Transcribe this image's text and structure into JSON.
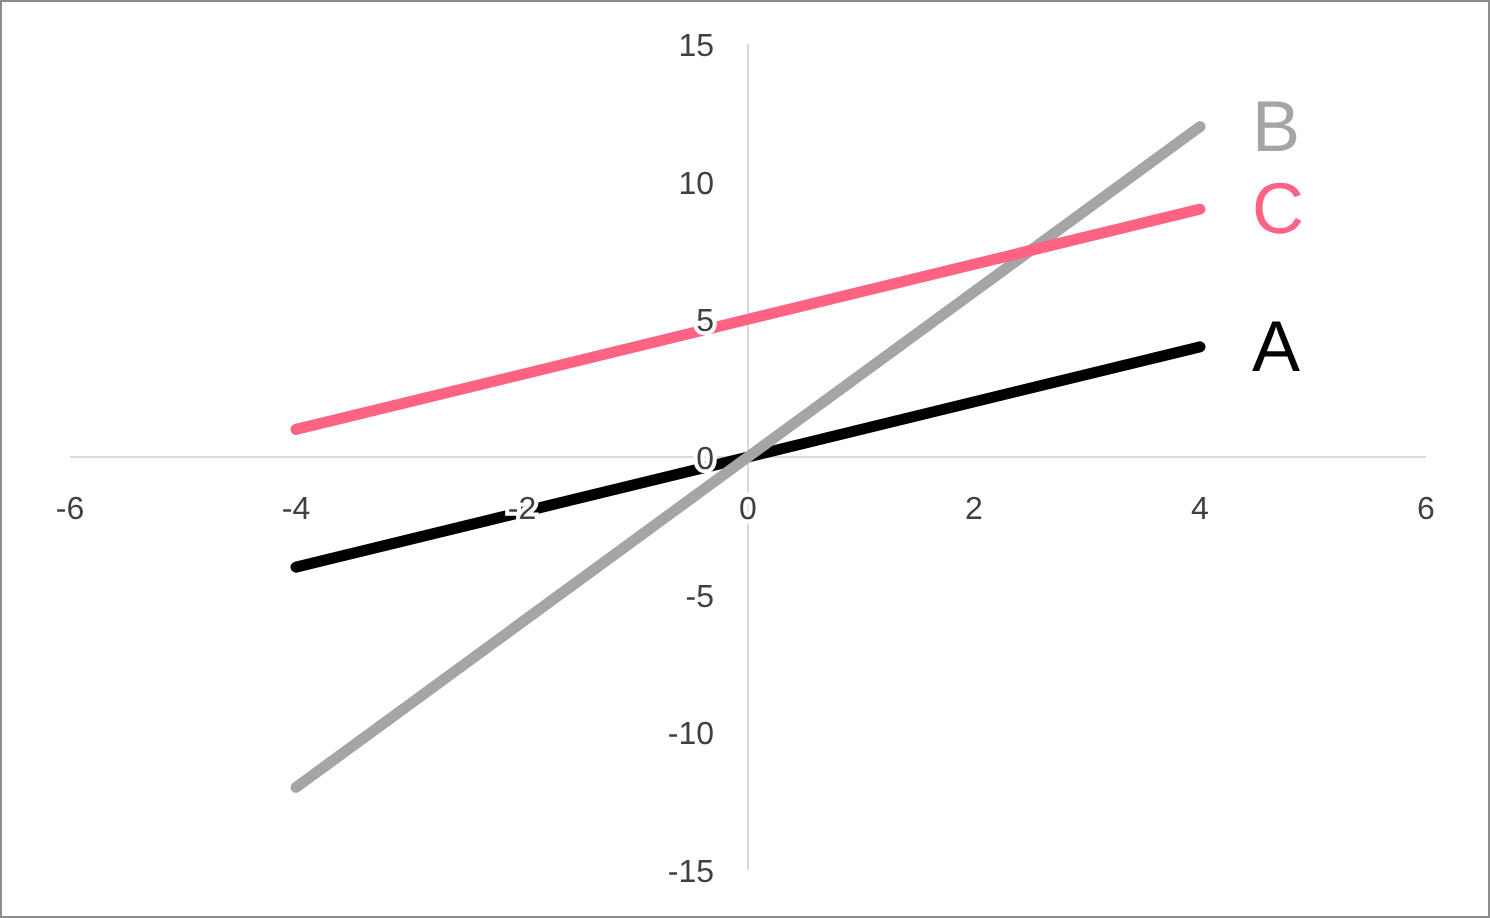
{
  "chart_data": {
    "type": "line",
    "x": [
      -4,
      4
    ],
    "series": [
      {
        "name": "A",
        "color": "#000000",
        "values": [
          -4,
          4
        ]
      },
      {
        "name": "B",
        "color": "#a5a5a5",
        "values": [
          -12,
          12
        ]
      },
      {
        "name": "C",
        "color": "#ff6384",
        "values": [
          1,
          9
        ]
      }
    ],
    "xlim": [
      -6,
      6
    ],
    "xticks": [
      -6,
      -4,
      -2,
      0,
      2,
      4,
      6
    ],
    "ylim": [
      -15,
      15
    ],
    "yticks": [
      -15,
      -10,
      -5,
      0,
      5,
      10,
      15
    ],
    "grid": false,
    "marker": "none",
    "line_style": "solid",
    "legend": false
  }
}
